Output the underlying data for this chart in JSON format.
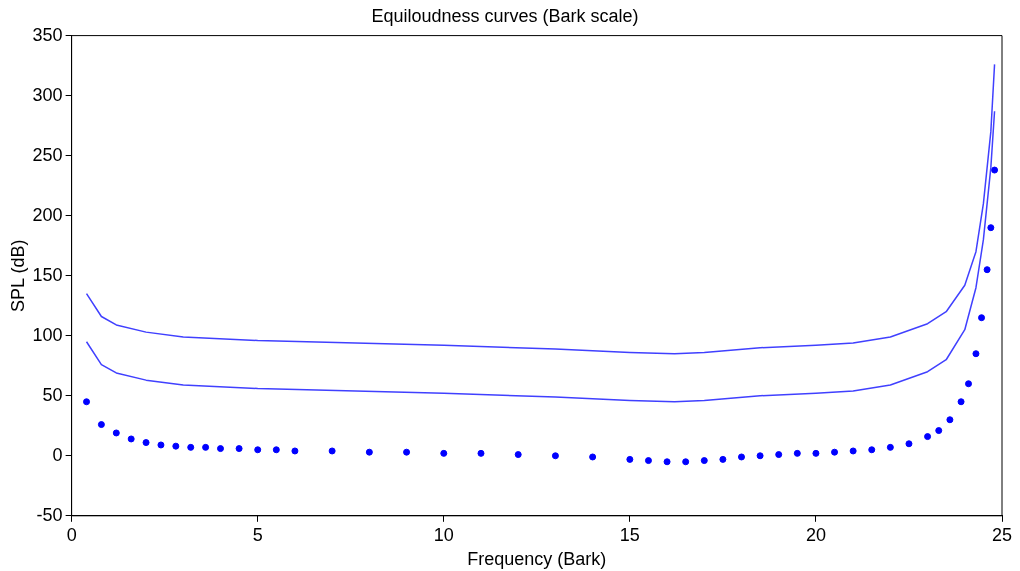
{
  "chart_data": {
    "type": "line",
    "title": "Equiloudness curves (Bark scale)",
    "xlabel": "Frequency (Bark)",
    "ylabel": "SPL (dB)",
    "xlim": [
      0,
      25
    ],
    "xticks": [
      0,
      5,
      10,
      15,
      20,
      25
    ],
    "ylim": [
      -50,
      350
    ],
    "yticks": [
      -50,
      0,
      50,
      100,
      150,
      200,
      250,
      300,
      350
    ],
    "grid": false,
    "legend": false,
    "series": [
      {
        "color": "#4040ff",
        "x": [
          0.4,
          0.8,
          1.2,
          2,
          3,
          5,
          10,
          13,
          15,
          16.2,
          17,
          18.5,
          20,
          21,
          22,
          23,
          23.5,
          24,
          24.3,
          24.5,
          24.7,
          24.8
        ],
        "values": [
          135,
          116,
          109,
          103,
          99,
          96,
          92,
          89,
          86,
          85,
          86,
          90,
          92,
          94,
          99,
          110,
          120,
          142,
          170,
          210,
          270,
          326
        ]
      },
      {
        "color": "#4040ff",
        "x": [
          0.4,
          0.8,
          1.2,
          2,
          3,
          5,
          10,
          13,
          15,
          16.2,
          17,
          18.5,
          20,
          21,
          22,
          23,
          23.5,
          24,
          24.3,
          24.5,
          24.7,
          24.8
        ],
        "values": [
          95,
          76,
          69,
          63,
          59,
          56,
          52,
          49,
          46,
          45,
          46,
          50,
          52,
          54,
          59,
          70,
          80,
          105,
          140,
          180,
          240,
          287
        ]
      },
      {
        "type": "scatter",
        "color": "#0000ff",
        "x": [
          0.4,
          0.8,
          1.2,
          1.6,
          2,
          2.4,
          2.8,
          3.2,
          3.6,
          4,
          4.5,
          5,
          5.5,
          6,
          7,
          8,
          9,
          10,
          11,
          12,
          13,
          14,
          15,
          15.5,
          16,
          16.5,
          17,
          17.5,
          18,
          18.5,
          19,
          19.5,
          20,
          20.5,
          21,
          21.5,
          22,
          22.5,
          23,
          23.3,
          23.6,
          23.9,
          24.1,
          24.3,
          24.45,
          24.6,
          24.7,
          24.8
        ],
        "values": [
          45,
          26,
          19,
          14,
          11,
          9,
          8,
          7,
          7,
          6,
          6,
          5,
          5,
          4,
          4,
          3,
          3,
          2,
          2,
          1,
          0,
          -1,
          -3,
          -4,
          -5,
          -5,
          -4,
          -3,
          -1,
          0,
          1,
          2,
          2,
          3,
          4,
          5,
          7,
          10,
          16,
          21,
          30,
          45,
          60,
          85,
          115,
          155,
          190,
          238
        ]
      }
    ]
  }
}
